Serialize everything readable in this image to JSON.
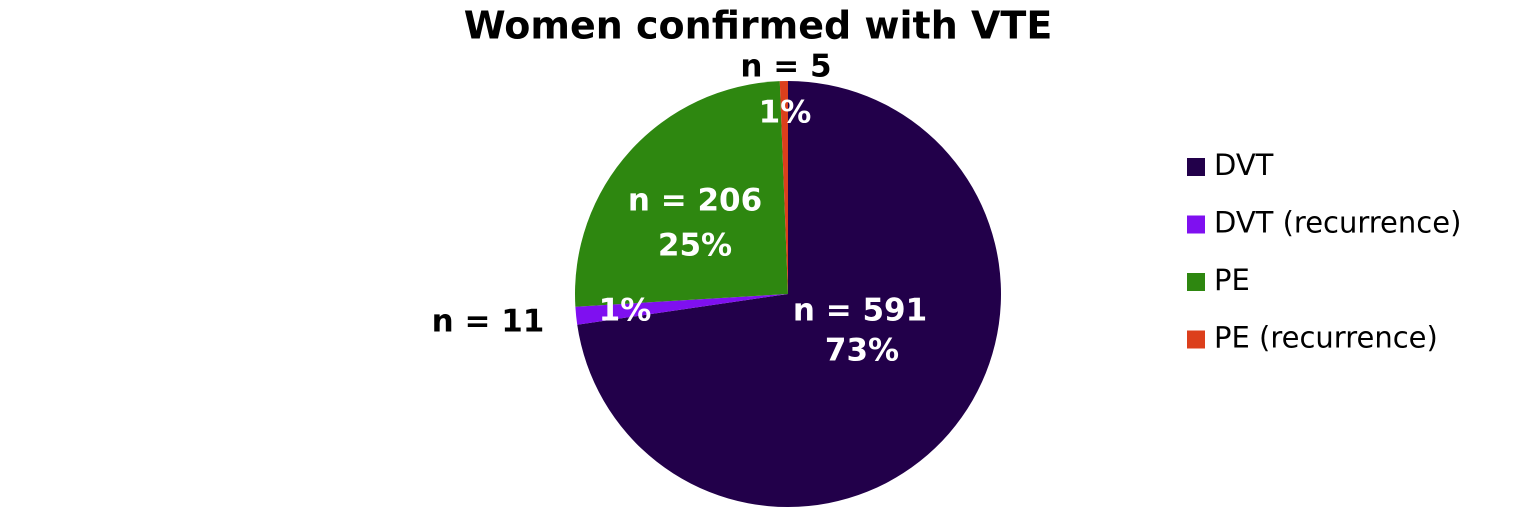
{
  "chart_data": {
    "type": "pie",
    "title": "Women confirmed with VTE",
    "categories": [
      "DVT",
      "DVT (recurrence)",
      "PE",
      "PE (recurrence)"
    ],
    "values": [
      591,
      11,
      206,
      5
    ],
    "value_labels": [
      "n = 591",
      "n = 11",
      "n = 206",
      "n = 5"
    ],
    "percent_labels": [
      "73%",
      "1%",
      "25%",
      "1%"
    ],
    "colors": [
      "#22004a",
      "#7f10f0",
      "#2e8710",
      "#dc3f1c"
    ],
    "legend": "right"
  }
}
